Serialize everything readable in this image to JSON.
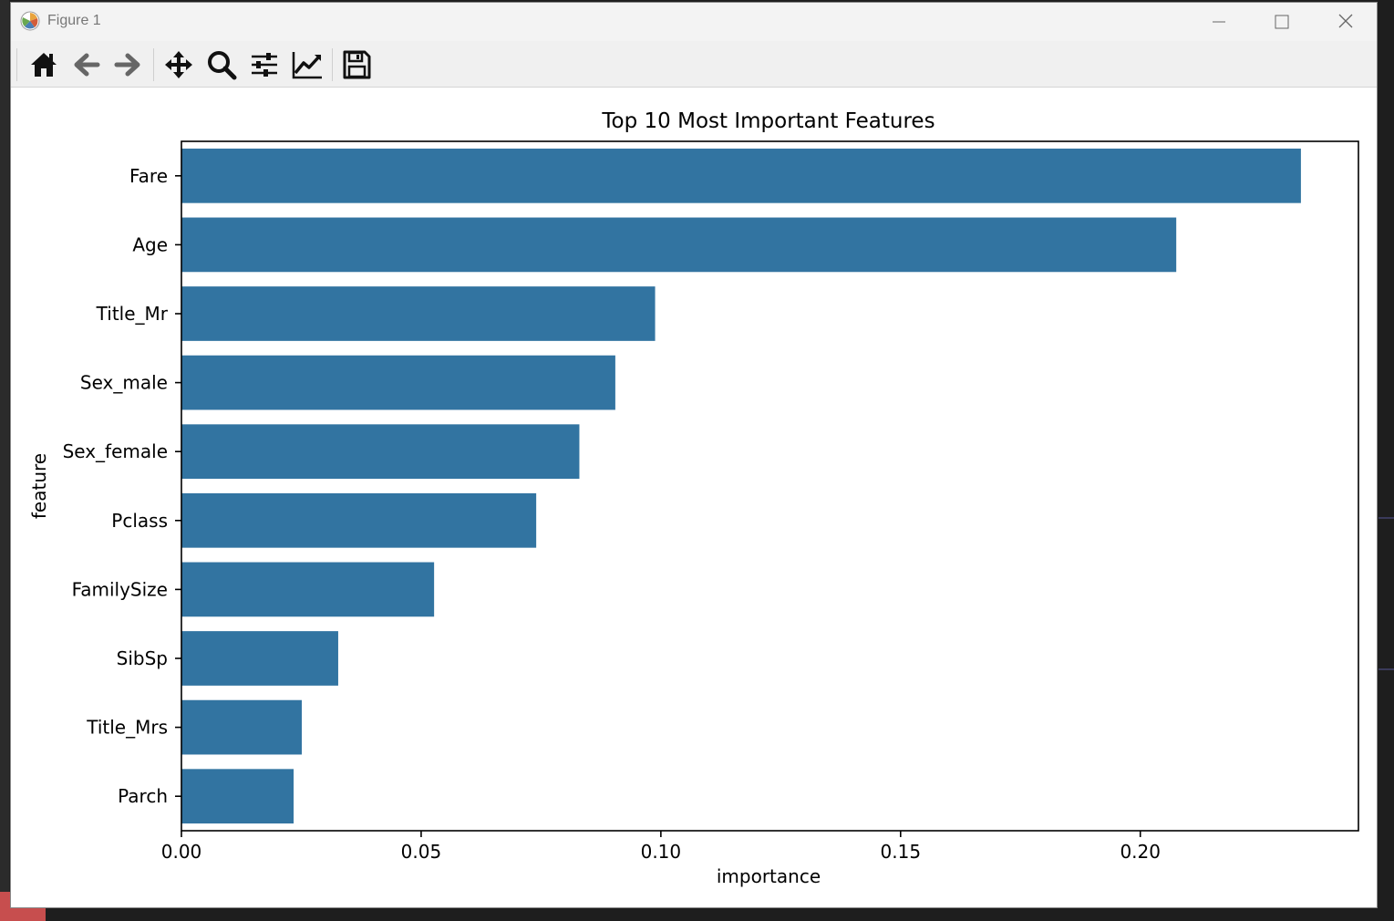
{
  "window": {
    "title": "Figure 1"
  },
  "toolbar": {
    "tools": [
      {
        "name": "home",
        "icon": "home-icon"
      },
      {
        "name": "back",
        "icon": "arrow-left-icon"
      },
      {
        "name": "forward",
        "icon": "arrow-right-icon"
      },
      {
        "name": "pan",
        "icon": "move-icon"
      },
      {
        "name": "zoom",
        "icon": "magnifier-icon"
      },
      {
        "name": "configure-subplots",
        "icon": "sliders-icon"
      },
      {
        "name": "edit-axis",
        "icon": "line-chart-icon"
      },
      {
        "name": "save",
        "icon": "floppy-disk-icon"
      }
    ]
  },
  "chart_data": {
    "type": "bar",
    "orientation": "horizontal",
    "title": "Top 10 Most Important Features",
    "xlabel": "importance",
    "ylabel": "feature",
    "categories": [
      "Fare",
      "Age",
      "Title_Mr",
      "Sex_male",
      "Sex_female",
      "Pclass",
      "FamilySize",
      "SibSp",
      "Title_Mrs",
      "Parch"
    ],
    "values": [
      0.2335,
      0.2075,
      0.0988,
      0.0905,
      0.083,
      0.074,
      0.0527,
      0.0327,
      0.0251,
      0.0234
    ],
    "xlim": [
      0,
      0.2455
    ],
    "xticks": [
      0.0,
      0.05,
      0.1,
      0.15,
      0.2
    ],
    "xtick_labels": [
      "0.00",
      "0.05",
      "0.10",
      "0.15",
      "0.20"
    ],
    "bar_color": "#3274a1",
    "grid": false,
    "legend": "none"
  }
}
